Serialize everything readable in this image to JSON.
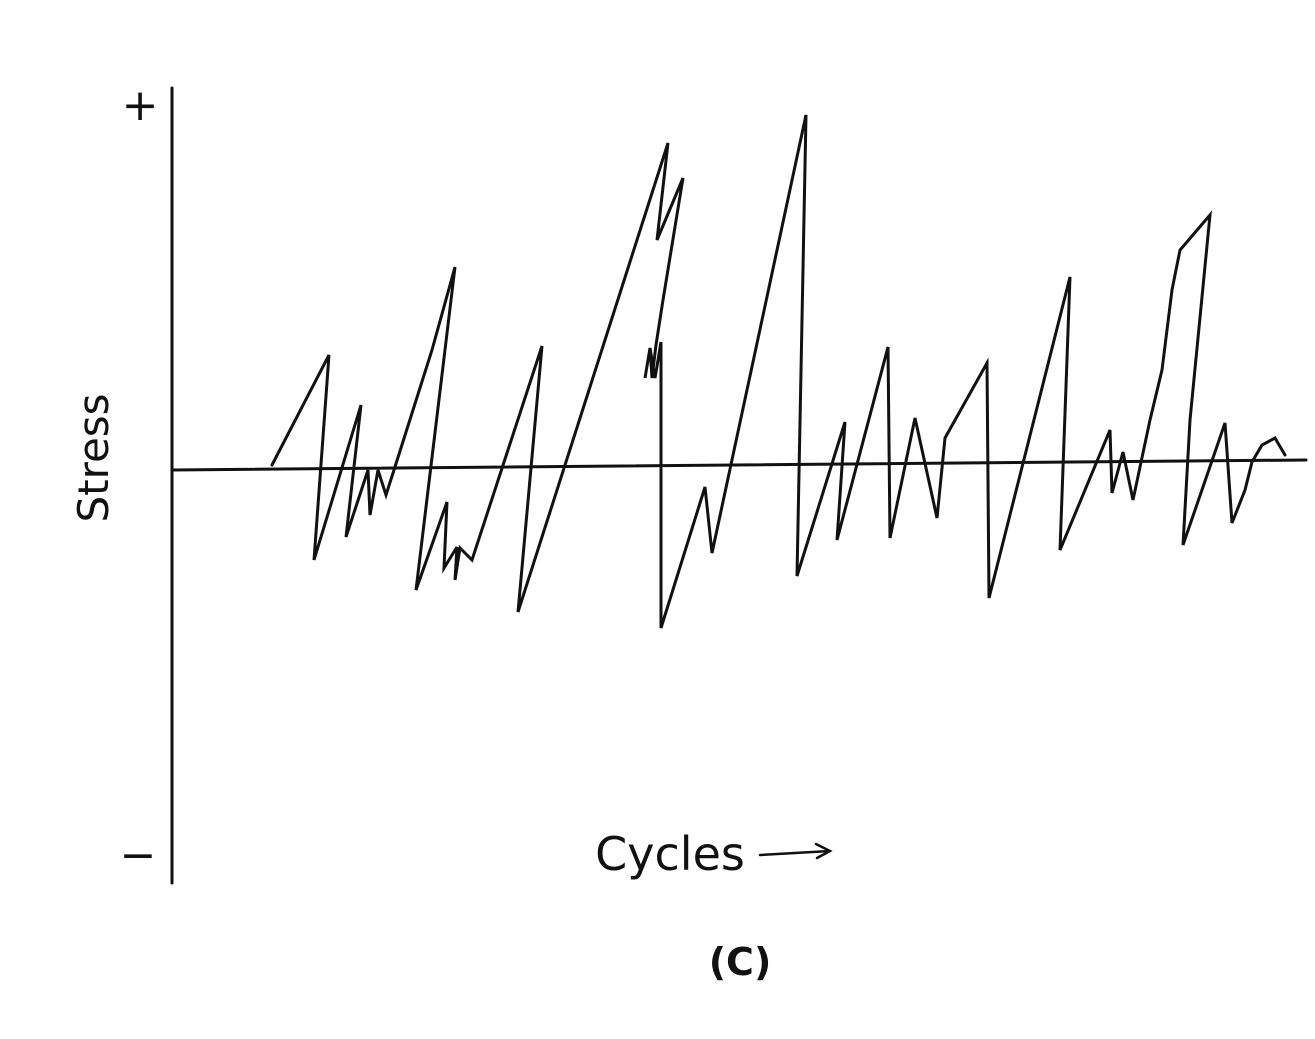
{
  "axis": {
    "plus": "+",
    "minus": "−",
    "y_label": "Stress",
    "x_label": "Cycles"
  },
  "caption": "(C)"
}
